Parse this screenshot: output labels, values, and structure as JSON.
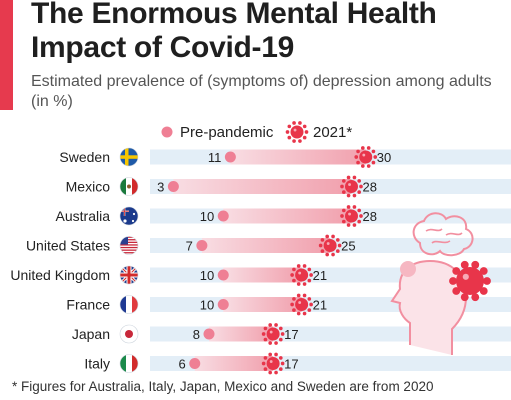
{
  "chart_data": {
    "type": "dumbbell",
    "title": "The Enormous Mental Health Impact of Covid-19",
    "subtitle": "Estimated prevalence of (symptoms of) depression among adults (in %)",
    "categories": [
      "Sweden",
      "Mexico",
      "Australia",
      "United States",
      "United Kingdom",
      "France",
      "Japan",
      "Italy"
    ],
    "series": [
      {
        "name": "Pre-pandemic",
        "values": [
          11,
          3,
          10,
          7,
          10,
          10,
          8,
          6
        ]
      },
      {
        "name": "2021*",
        "values": [
          30,
          28,
          28,
          25,
          21,
          21,
          17,
          17
        ]
      }
    ],
    "xlim": [
      0,
      32
    ],
    "legend_position": "top",
    "footnote": "* Figures for Australia, Italy, Japan, Mexico and Sweden are from 2020"
  },
  "colors": {
    "accent": "#e63a4e",
    "pre_pandemic": "#ef7f94",
    "covid": "#e8354a",
    "track": "#e3eef7",
    "gradient_start": "#f8dde3",
    "gradient_end": "#f1a0ad"
  },
  "flags": [
    "sweden-flag-icon",
    "mexico-flag-icon",
    "australia-flag-icon",
    "united-states-flag-icon",
    "united-kingdom-flag-icon",
    "france-flag-icon",
    "japan-flag-icon",
    "italy-flag-icon"
  ]
}
